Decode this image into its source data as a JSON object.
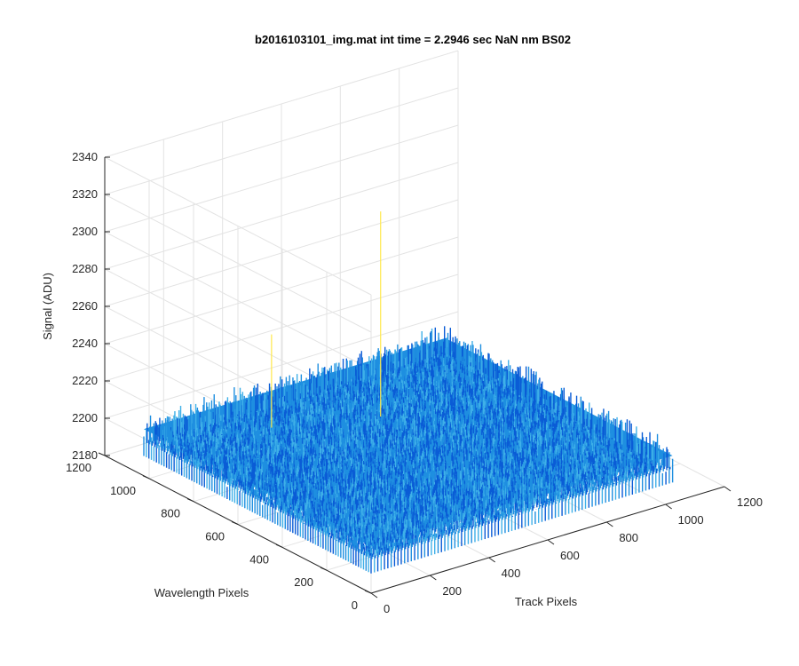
{
  "chart_data": {
    "type": "surface",
    "title": "b2016103101_img.mat int time = 2.2946 sec  NaN nm BS02",
    "xlabel": "Track Pixels",
    "ylabel": "Wavelength Pixels",
    "zlabel": "Signal (ADU)",
    "xlim": [
      0,
      1200
    ],
    "ylim": [
      0,
      1200
    ],
    "zlim": [
      2180,
      2340
    ],
    "x_ticks": [
      "0",
      "200",
      "400",
      "600",
      "800",
      "1000",
      "1200"
    ],
    "y_ticks": [
      "0",
      "200",
      "400",
      "600",
      "800",
      "1000",
      "1200"
    ],
    "z_ticks": [
      "2180",
      "2200",
      "2220",
      "2240",
      "2260",
      "2280",
      "2300",
      "2320",
      "2340"
    ],
    "grid": true,
    "colormap": "parula",
    "surface": {
      "x_range": [
        0,
        1024
      ],
      "y_range": [
        0,
        1024
      ],
      "mean_signal": 2205,
      "noise_amplitude": 8,
      "spikes": [
        {
          "x": 560,
          "y": 700,
          "z": 2315
        },
        {
          "x": 280,
          "y": 820,
          "z": 2255
        }
      ]
    },
    "colors": {
      "low": "#0a5cd6",
      "mid": "#1f8fe0",
      "high": "#3fb0e8",
      "spike": "#ffe84a"
    }
  }
}
